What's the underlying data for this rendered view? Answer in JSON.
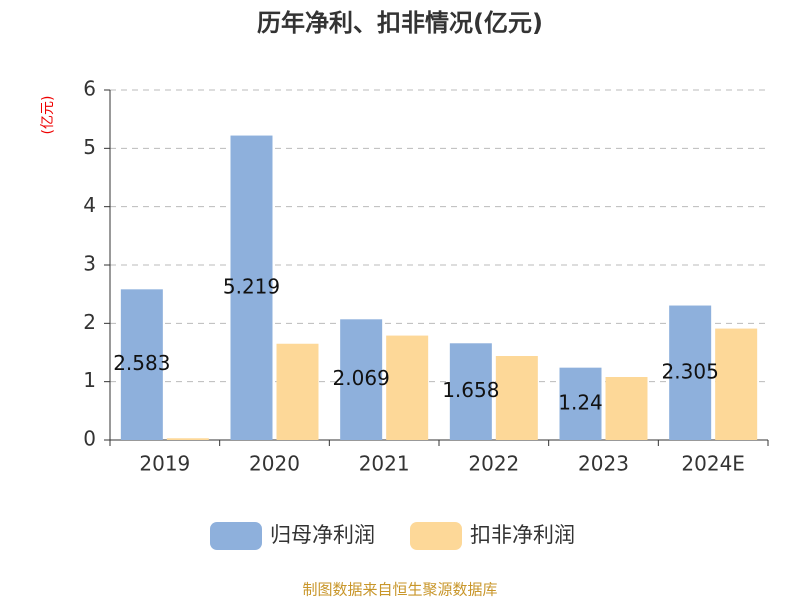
{
  "chart_data": {
    "type": "bar",
    "title": "历年净利、扣非情况(亿元)",
    "y_label": "(亿元)",
    "categories": [
      "2019",
      "2020",
      "2021",
      "2022",
      "2023",
      "2024E"
    ],
    "series": [
      {
        "name": "归母净利润",
        "color": "#8eb0dc",
        "values": [
          2.583,
          5.219,
          2.069,
          1.658,
          1.24,
          2.305
        ],
        "show_labels": true
      },
      {
        "name": "扣非净利润",
        "color": "#fdd898",
        "values": [
          0.03,
          1.65,
          1.79,
          1.44,
          1.08,
          1.91
        ],
        "show_labels": false
      }
    ],
    "ylim": [
      0,
      6
    ],
    "yticks": [
      0,
      1,
      2,
      3,
      4,
      5,
      6
    ],
    "grid": true,
    "legend": "bottom",
    "source": "制图数据来自恒生聚源数据库"
  }
}
